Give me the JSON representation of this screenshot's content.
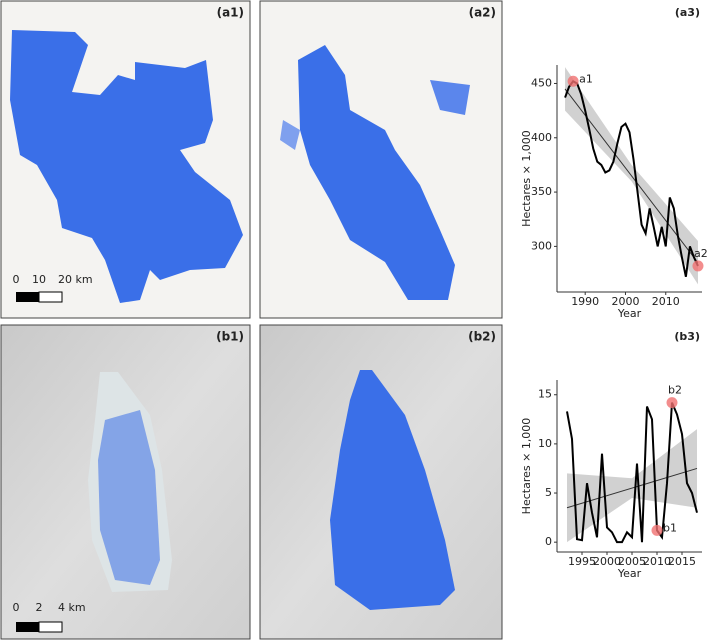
{
  "panels": {
    "a1": "(a1)",
    "a2": "(a2)",
    "b1": "(b1)",
    "b2": "(b2)"
  },
  "scale_bars": [
    {
      "labels": [
        "0",
        "10",
        "20 km"
      ]
    },
    {
      "labels": [
        "0",
        "2",
        "4 km"
      ]
    }
  ],
  "chart_data": [
    {
      "type": "line",
      "title": "(a3)",
      "xlabel": "Year",
      "ylabel": "Hectares × 1,000",
      "color": "#000000",
      "x": [
        1985,
        1986,
        1987,
        1988,
        1989,
        1990,
        1991,
        1992,
        1993,
        1994,
        1995,
        1996,
        1997,
        1998,
        1999,
        2000,
        2001,
        2002,
        2003,
        2004,
        2005,
        2006,
        2007,
        2008,
        2009,
        2010,
        2011,
        2012,
        2013,
        2014,
        2015,
        2016,
        2017,
        2018
      ],
      "values": [
        437,
        447,
        452,
        450,
        440,
        425,
        408,
        390,
        378,
        375,
        368,
        370,
        378,
        395,
        410,
        413,
        405,
        380,
        350,
        320,
        312,
        335,
        318,
        300,
        318,
        300,
        345,
        335,
        310,
        290,
        272,
        300,
        290,
        282
      ],
      "trend": {
        "x": [
          1985,
          2018
        ],
        "values": [
          445,
          285
        ]
      },
      "band": {
        "x": [
          1985,
          2001.5,
          2018
        ],
        "lower": [
          425,
          360,
          265
        ],
        "upper": [
          465,
          375,
          305
        ]
      },
      "annotations": [
        {
          "text": "a1",
          "x": 1987,
          "y": 452
        },
        {
          "text": "a2",
          "x": 2018,
          "y": 282
        }
      ],
      "xlim": [
        1983,
        2019
      ],
      "ylim": [
        258,
        467
      ],
      "xticks": [
        1990,
        2000,
        2010
      ],
      "yticks": [
        300,
        350,
        400,
        450
      ]
    },
    {
      "type": "line",
      "title": "(b3)",
      "xlabel": "Year",
      "ylabel": "Hectares × 1,000",
      "color": "#000000",
      "x": [
        1992,
        1993,
        1994,
        1995,
        1996,
        1997,
        1998,
        1999,
        2000,
        2001,
        2002,
        2003,
        2004,
        2005,
        2006,
        2007,
        2008,
        2009,
        2010,
        2011,
        2012,
        2013,
        2014,
        2015,
        2016,
        2017,
        2018
      ],
      "values": [
        13.3,
        10.5,
        0.3,
        0.2,
        6,
        3,
        0.5,
        9,
        1.5,
        1,
        0,
        0,
        1,
        0.5,
        8,
        0,
        13.8,
        12.5,
        1.2,
        0.5,
        6,
        14.2,
        13,
        11,
        6,
        5,
        3
      ],
      "trend": {
        "x": [
          1992,
          2018
        ],
        "values": [
          3.5,
          7.5
        ]
      },
      "band": {
        "x": [
          1992,
          2005,
          2018
        ],
        "lower": [
          0,
          4.5,
          3.5
        ],
        "upper": [
          7,
          6.5,
          11.5
        ]
      },
      "annotations": [
        {
          "text": "b1",
          "x": 2010,
          "y": 1.2
        },
        {
          "text": "b2",
          "x": 2013,
          "y": 14.2
        }
      ],
      "xlim": [
        1990,
        2019
      ],
      "ylim": [
        -1,
        16.5
      ],
      "xticks": [
        1995,
        2000,
        2005,
        2010,
        2015
      ],
      "yticks": [
        0,
        5,
        10,
        15
      ]
    }
  ]
}
